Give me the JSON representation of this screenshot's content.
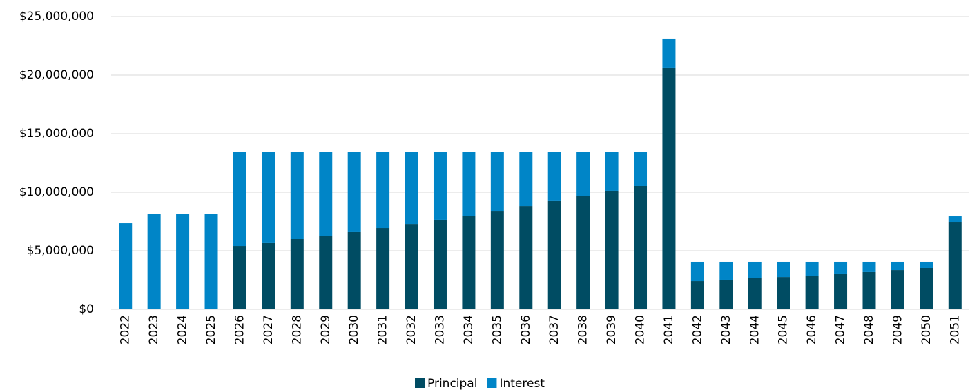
{
  "chart_data": {
    "type": "bar",
    "stacked": true,
    "categories": [
      "2022",
      "2023",
      "2024",
      "2025",
      "2026",
      "2027",
      "2028",
      "2029",
      "2030",
      "2031",
      "2032",
      "2033",
      "2034",
      "2035",
      "2036",
      "2037",
      "2038",
      "2039",
      "2040",
      "2041",
      "2042",
      "2043",
      "2044",
      "2045",
      "2046",
      "2047",
      "2048",
      "2049",
      "2050",
      "2051"
    ],
    "series": [
      {
        "name": "Principal",
        "color": "#004c63",
        "values": [
          0,
          0,
          0,
          0,
          5410000,
          5710000,
          6000000,
          6290000,
          6590000,
          6940000,
          7290000,
          7650000,
          8000000,
          8410000,
          8820000,
          9240000,
          9650000,
          10120000,
          10530000,
          20650000,
          2410000,
          2530000,
          2650000,
          2760000,
          2880000,
          3060000,
          3180000,
          3350000,
          3530000,
          7470000
        ]
      },
      {
        "name": "Interest",
        "color": "#0085c7",
        "values": [
          7350000,
          8120000,
          8120000,
          8120000,
          8060000,
          7760000,
          7470000,
          7180000,
          6880000,
          6530000,
          6180000,
          5820000,
          5470000,
          5060000,
          4650000,
          4230000,
          3820000,
          3350000,
          2940000,
          2470000,
          1650000,
          1530000,
          1410000,
          1300000,
          1180000,
          1000000,
          880000,
          710000,
          530000,
          470000
        ]
      }
    ],
    "ylim": [
      0,
      25000000
    ],
    "yticks": [
      {
        "value": 0,
        "label": "$0"
      },
      {
        "value": 5000000,
        "label": "$5,000,000"
      },
      {
        "value": 10000000,
        "label": "$10,000,000"
      },
      {
        "value": 15000000,
        "label": "$15,000,000"
      },
      {
        "value": 20000000,
        "label": "$20,000,000"
      },
      {
        "value": 25000000,
        "label": "$25,000,000"
      }
    ],
    "grid": true,
    "legend": "bottom"
  }
}
